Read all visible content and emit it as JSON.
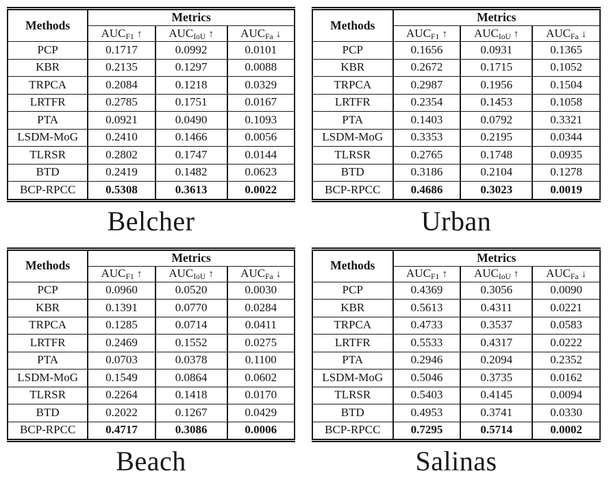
{
  "colors": {
    "background": "#ffffff",
    "text": "#141414",
    "rule": "#1c1c1c"
  },
  "header": {
    "methods_label": "Methods",
    "metrics_label": "Metrics",
    "metric_columns": [
      {
        "base": "AUC",
        "sub": "F1",
        "arrow": "↑"
      },
      {
        "base": "AUC",
        "sub": "IoU",
        "arrow": "↑"
      },
      {
        "base": "AUC",
        "sub": "Fa",
        "arrow": "↓"
      }
    ]
  },
  "tables": [
    {
      "caption": "Belcher",
      "rows": [
        {
          "method": "PCP",
          "values": [
            "0.1717",
            "0.0992",
            "0.0101"
          ],
          "bold": false
        },
        {
          "method": "KBR",
          "values": [
            "0.2135",
            "0.1297",
            "0.0088"
          ],
          "bold": false
        },
        {
          "method": "TRPCA",
          "values": [
            "0.2084",
            "0.1218",
            "0.0329"
          ],
          "bold": false
        },
        {
          "method": "LRTFR",
          "values": [
            "0.2785",
            "0.1751",
            "0.0167"
          ],
          "bold": false
        },
        {
          "method": "PTA",
          "values": [
            "0.0921",
            "0.0490",
            "0.1093"
          ],
          "bold": false
        },
        {
          "method": "LSDM-MoG",
          "values": [
            "0.2410",
            "0.1466",
            "0.0056"
          ],
          "bold": false
        },
        {
          "method": "TLRSR",
          "values": [
            "0.2802",
            "0.1747",
            "0.0144"
          ],
          "bold": false
        },
        {
          "method": "BTD",
          "values": [
            "0.2419",
            "0.1482",
            "0.0623"
          ],
          "bold": false
        },
        {
          "method": "BCP-RPCC",
          "values": [
            "0.5308",
            "0.3613",
            "0.0022"
          ],
          "bold": true
        }
      ]
    },
    {
      "caption": "Urban",
      "rows": [
        {
          "method": "PCP",
          "values": [
            "0.1656",
            "0.0931",
            "0.1365"
          ],
          "bold": false
        },
        {
          "method": "KBR",
          "values": [
            "0.2672",
            "0.1715",
            "0.1052"
          ],
          "bold": false
        },
        {
          "method": "TRPCA",
          "values": [
            "0.2987",
            "0.1956",
            "0.1504"
          ],
          "bold": false
        },
        {
          "method": "LRTFR",
          "values": [
            "0.2354",
            "0.1453",
            "0.1058"
          ],
          "bold": false
        },
        {
          "method": "PTA",
          "values": [
            "0.1403",
            "0.0792",
            "0.3321"
          ],
          "bold": false
        },
        {
          "method": "LSDM-MoG",
          "values": [
            "0.3353",
            "0.2195",
            "0.0344"
          ],
          "bold": false
        },
        {
          "method": "TLRSR",
          "values": [
            "0.2765",
            "0.1748",
            "0.0935"
          ],
          "bold": false
        },
        {
          "method": "BTD",
          "values": [
            "0.3186",
            "0.2104",
            "0.1278"
          ],
          "bold": false
        },
        {
          "method": "BCP-RPCC",
          "values": [
            "0.4686",
            "0.3023",
            "0.0019"
          ],
          "bold": true
        }
      ]
    },
    {
      "caption": "Beach",
      "rows": [
        {
          "method": "PCP",
          "values": [
            "0.0960",
            "0.0520",
            "0.0030"
          ],
          "bold": false
        },
        {
          "method": "KBR",
          "values": [
            "0.1391",
            "0.0770",
            "0.0284"
          ],
          "bold": false
        },
        {
          "method": "TRPCA",
          "values": [
            "0.1285",
            "0.0714",
            "0.0411"
          ],
          "bold": false
        },
        {
          "method": "LRTFR",
          "values": [
            "0.2469",
            "0.1552",
            "0.0275"
          ],
          "bold": false
        },
        {
          "method": "PTA",
          "values": [
            "0.0703",
            "0.0378",
            "0.1100"
          ],
          "bold": false
        },
        {
          "method": "LSDM-MoG",
          "values": [
            "0.1549",
            "0.0864",
            "0.0602"
          ],
          "bold": false
        },
        {
          "method": "TLRSR",
          "values": [
            "0.2264",
            "0.1418",
            "0.0170"
          ],
          "bold": false
        },
        {
          "method": "BTD",
          "values": [
            "0.2022",
            "0.1267",
            "0.0429"
          ],
          "bold": false
        },
        {
          "method": "BCP-RPCC",
          "values": [
            "0.4717",
            "0.3086",
            "0.0006"
          ],
          "bold": true
        }
      ]
    },
    {
      "caption": "Salinas",
      "rows": [
        {
          "method": "PCP",
          "values": [
            "0.4369",
            "0.3056",
            "0.0090"
          ],
          "bold": false
        },
        {
          "method": "KBR",
          "values": [
            "0.5613",
            "0.4311",
            "0.0221"
          ],
          "bold": false
        },
        {
          "method": "TRPCA",
          "values": [
            "0.4733",
            "0.3537",
            "0.0583"
          ],
          "bold": false
        },
        {
          "method": "LRTFR",
          "values": [
            "0.5533",
            "0.4317",
            "0.0222"
          ],
          "bold": false
        },
        {
          "method": "PTA",
          "values": [
            "0.2946",
            "0.2094",
            "0.2352"
          ],
          "bold": false
        },
        {
          "method": "LSDM-MoG",
          "values": [
            "0.5046",
            "0.3735",
            "0.0162"
          ],
          "bold": false
        },
        {
          "method": "TLRSR",
          "values": [
            "0.5403",
            "0.4145",
            "0.0094"
          ],
          "bold": false
        },
        {
          "method": "BTD",
          "values": [
            "0.4953",
            "0.3741",
            "0.0330"
          ],
          "bold": false
        },
        {
          "method": "BCP-RPCC",
          "values": [
            "0.7295",
            "0.5714",
            "0.0002"
          ],
          "bold": true
        }
      ]
    }
  ]
}
